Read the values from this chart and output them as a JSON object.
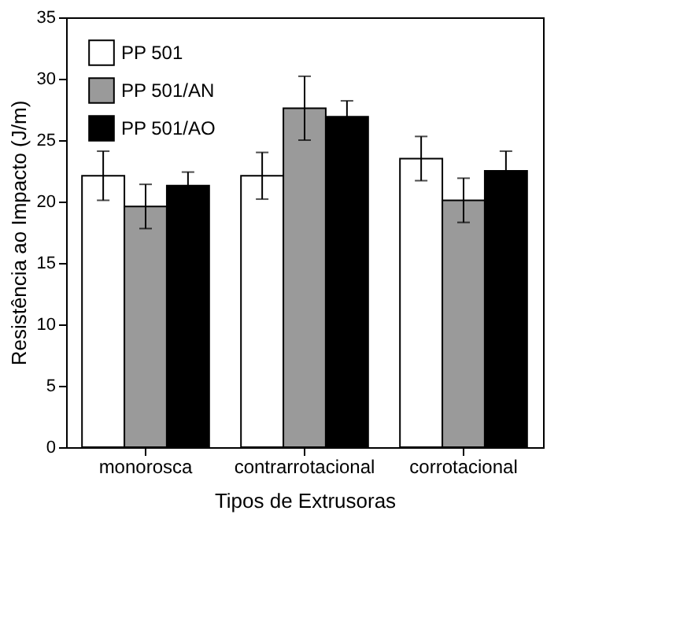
{
  "chart_data": {
    "type": "bar",
    "xlabel": "Tipos de Extrusoras",
    "ylabel": "Resistência ao Impacto (J/m)",
    "categories": [
      "monorosca",
      "contrarrotacional",
      "corrotacional"
    ],
    "series": [
      {
        "name": "PP 501",
        "color": "#ffffff",
        "values": [
          22.1,
          22.1,
          23.5
        ],
        "errors": [
          2.0,
          1.9,
          1.8
        ]
      },
      {
        "name": "PP 501/AN",
        "color": "#9a9a9a",
        "values": [
          19.6,
          27.6,
          20.1
        ],
        "errors": [
          1.8,
          2.6,
          1.8
        ]
      },
      {
        "name": "PP 501/AO",
        "color": "#000000",
        "values": [
          21.3,
          26.9,
          22.5
        ],
        "errors": [
          1.1,
          1.3,
          1.6
        ]
      }
    ],
    "ylim": [
      0,
      35
    ],
    "yticks": [
      0,
      5,
      10,
      15,
      20,
      25,
      30,
      35
    ],
    "legend": "top left",
    "grid": false
  }
}
